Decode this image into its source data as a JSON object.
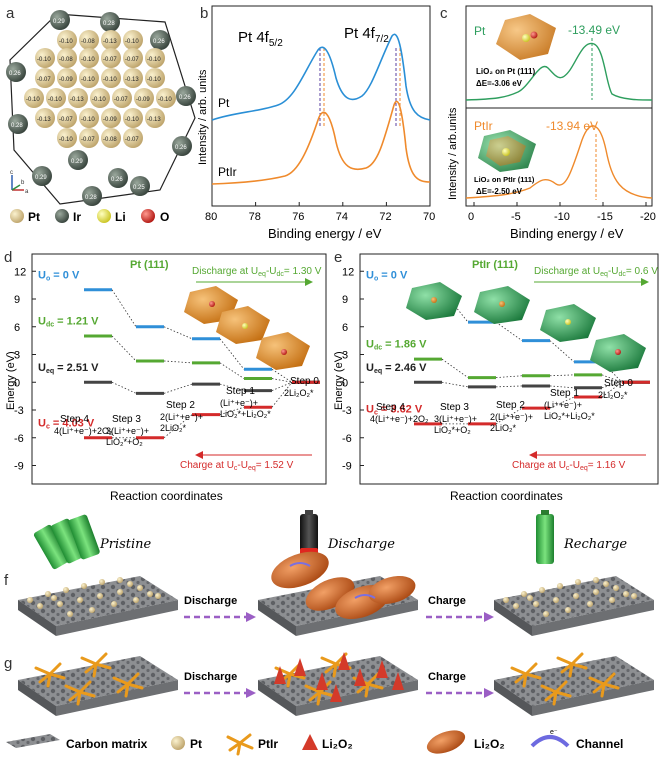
{
  "panels": {
    "a": {
      "label": "a",
      "pt_charges": [
        "-0.10",
        "-0.08",
        "-0.13",
        "-0.10",
        "-0.10",
        "-0.08",
        "-0.10",
        "-0.07",
        "-0.07",
        "-0.10",
        "-0.07",
        "-0.09",
        "-0.10",
        "-0.10",
        "-0.13",
        "-0.10",
        "-0.10",
        "-0.10",
        "-0.13",
        "-0.10",
        "-0.07",
        "-0.09",
        "-0.10",
        "-0.13",
        "-0.07",
        "-0.10",
        "-0.09",
        "-0.10",
        "-0.13",
        "-0.10",
        "-0.07",
        "-0.08",
        "-0.07"
      ],
      "ir_charges": [
        "0.29",
        "0.28",
        "0.26",
        "0.26",
        "0.26",
        "0.25",
        "0.28",
        "0.29",
        "0.28",
        "0.26",
        "0.29",
        "0.26"
      ],
      "axes": [
        "b",
        "c",
        "a"
      ]
    },
    "b": {
      "label": "b",
      "peak1": "Pt 4f",
      "peak1_sub": "5/2",
      "peak2": "Pt 4f",
      "peak2_sub": "7/2",
      "series": [
        "Pt",
        "PtIr"
      ],
      "ylabel": "Intensity / arb. units",
      "xlabel": "Binding energy / eV",
      "ticks": [
        "80",
        "78",
        "76",
        "74",
        "72",
        "70"
      ]
    },
    "c": {
      "label": "c",
      "ylabel": "Intensity / arb.units",
      "xlabel": "Binding energy / eV",
      "ticks": [
        "0",
        "-5",
        "-10",
        "-15",
        "-20"
      ],
      "top": {
        "name": "Pt",
        "peak": "-13.49 eV",
        "caption": "LiO₂ on Pt (111)",
        "de": "ΔE=-3.06 eV"
      },
      "bottom": {
        "name": "PtIr",
        "peak": "-13.94 eV",
        "caption": "LiO₂ on PtIr (111)",
        "de": "ΔE=-2.50 eV"
      }
    },
    "d": {
      "label": "d",
      "title": "Pt (111)",
      "discharge": "Discharge at U",
      "charge": "Charge at U",
      "discharge_val": "= 1.30 V",
      "charge_val": "= 1.52 V",
      "ylabel": "Energy (eV)",
      "xlabel": "Reaction coordinates",
      "yticks": [
        "12",
        "9",
        "6",
        "3",
        "0",
        "-3",
        "-6",
        "-9"
      ],
      "labels": [
        {
          "main": "U",
          "sub": "o",
          "val": " = 0 V",
          "color": "#2f8fd8"
        },
        {
          "main": "U",
          "sub": "dc",
          "val": " = 1.21 V",
          "color": "#55a832"
        },
        {
          "main": "U",
          "sub": "eq",
          "val": " = 2.51 V",
          "color": "#222"
        },
        {
          "main": "U",
          "sub": "c",
          "val": " = 4.03 V",
          "color": "#d42a2a"
        }
      ],
      "steps": [
        {
          "name": "Step 4",
          "desc": "4(Li⁺+e⁻)+2O₂"
        },
        {
          "name": "Step 3",
          "desc": "3(Li⁺+e⁻)+ LiO₂*+O₂"
        },
        {
          "name": "Step 2",
          "desc": "2(Li⁺+e⁻)+ 2LiO₂*"
        },
        {
          "name": "Step 1",
          "desc": "(Li⁺+e⁻)+ LiO₂*+Li₂O₂*"
        },
        {
          "name": "Step 0",
          "desc": "2Li₂O₂*"
        }
      ]
    },
    "e": {
      "label": "e",
      "title": "PtIr (111)",
      "discharge": "Discharge at U",
      "charge": "Charge at U",
      "discharge_val": "= 0.6 V",
      "charge_val": "= 1.16 V",
      "ylabel": "Energy (eV)",
      "xlabel": "Reaction coordinates",
      "yticks": [
        "12",
        "9",
        "6",
        "3",
        "0",
        "-3",
        "-6",
        "-9"
      ],
      "labels": [
        {
          "main": "U",
          "sub": "o",
          "val": " = 0 V",
          "color": "#2f8fd8"
        },
        {
          "main": "U",
          "sub": "dc",
          "val": " = 1.86 V",
          "color": "#55a832"
        },
        {
          "main": "U",
          "sub": "eq",
          "val": " = 2.46 V",
          "color": "#222"
        },
        {
          "main": "U",
          "sub": "c",
          "val": " = 3.62 V",
          "color": "#d42a2a"
        }
      ],
      "steps": [
        {
          "name": "Step 4",
          "desc": "4(Li⁺+e⁻)+2O₂"
        },
        {
          "name": "Step 3",
          "desc": "3(Li⁺+e⁻)+ LiO₂*+O₂"
        },
        {
          "name": "Step 2",
          "desc": "2(Li⁺+e⁻)+ 2LiO₂*"
        },
        {
          "name": "Step 1",
          "desc": "(Li⁺+e⁻)+ LiO₂*+Li₂O₂*"
        },
        {
          "name": "Step 0",
          "desc": "2Li₂O₂*"
        }
      ]
    },
    "f": {
      "label": "f",
      "arrow1": "Discharge",
      "arrow2": "Charge"
    },
    "g": {
      "label": "g",
      "arrow1": "Discharge",
      "arrow2": "Charge"
    }
  },
  "legend_atoms": [
    "Pt",
    "Ir",
    "Li",
    "O"
  ],
  "battery_states": [
    "Pristine",
    "Discharge",
    "Recharge"
  ],
  "bottom_legend": [
    "Carbon matrix",
    "Pt",
    "PtIr",
    "Li₂O₂",
    "Li₂O₂",
    "Channel"
  ],
  "colors": {
    "pt": "#d9c488",
    "ir": "#4f5f55",
    "li": "#e8e33a",
    "o": "#d8241c",
    "blue": "#2f8fd8",
    "green": "#55a832",
    "red": "#d42a2a",
    "orange": "#ef8a2c",
    "tealgreen": "#2e9e5e",
    "arrowpurple": "#9b5fc5"
  }
}
